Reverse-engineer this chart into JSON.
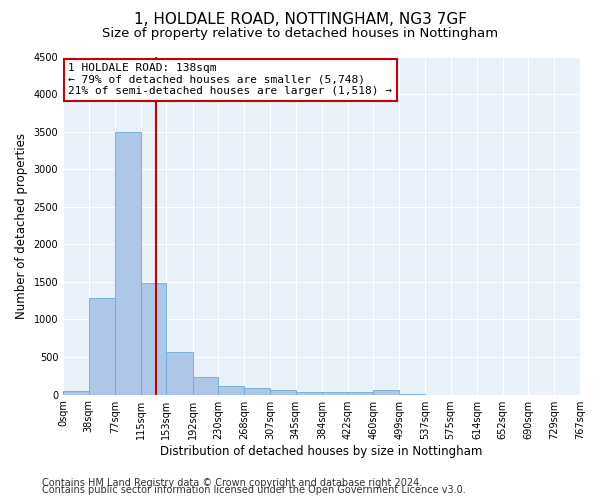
{
  "title": "1, HOLDALE ROAD, NOTTINGHAM, NG3 7GF",
  "subtitle": "Size of property relative to detached houses in Nottingham",
  "xlabel": "Distribution of detached houses by size in Nottingham",
  "ylabel": "Number of detached properties",
  "bin_edges": [
    0,
    38,
    77,
    115,
    153,
    192,
    230,
    268,
    307,
    345,
    384,
    422,
    460,
    499,
    537,
    575,
    614,
    652,
    690,
    729,
    767
  ],
  "bin_counts": [
    50,
    1280,
    3500,
    1480,
    570,
    240,
    115,
    85,
    55,
    40,
    35,
    30,
    55,
    5,
    0,
    0,
    0,
    0,
    0,
    0
  ],
  "bar_color": "#aec6e8",
  "bar_edge_color": "#6aaad4",
  "vline_x": 138,
  "vline_color": "#cc0000",
  "annotation_line1": "1 HOLDALE ROAD: 138sqm",
  "annotation_line2": "← 79% of detached houses are smaller (5,748)",
  "annotation_line3": "21% of semi-detached houses are larger (1,518) →",
  "annotation_box_color": "#ffffff",
  "annotation_box_edge_color": "#cc0000",
  "ylim": [
    0,
    4500
  ],
  "yticks": [
    0,
    500,
    1000,
    1500,
    2000,
    2500,
    3000,
    3500,
    4000,
    4500
  ],
  "tick_labels": [
    "0sqm",
    "38sqm",
    "77sqm",
    "115sqm",
    "153sqm",
    "192sqm",
    "230sqm",
    "268sqm",
    "307sqm",
    "345sqm",
    "384sqm",
    "422sqm",
    "460sqm",
    "499sqm",
    "537sqm",
    "575sqm",
    "614sqm",
    "652sqm",
    "690sqm",
    "729sqm",
    "767sqm"
  ],
  "footer_line1": "Contains HM Land Registry data © Crown copyright and database right 2024.",
  "footer_line2": "Contains public sector information licensed under the Open Government Licence v3.0.",
  "plot_bg_color": "#e8f0fa",
  "grid_color": "#ffffff",
  "title_fontsize": 11,
  "subtitle_fontsize": 9.5,
  "axis_label_fontsize": 8.5,
  "tick_fontsize": 7,
  "annotation_fontsize": 8,
  "footer_fontsize": 7
}
